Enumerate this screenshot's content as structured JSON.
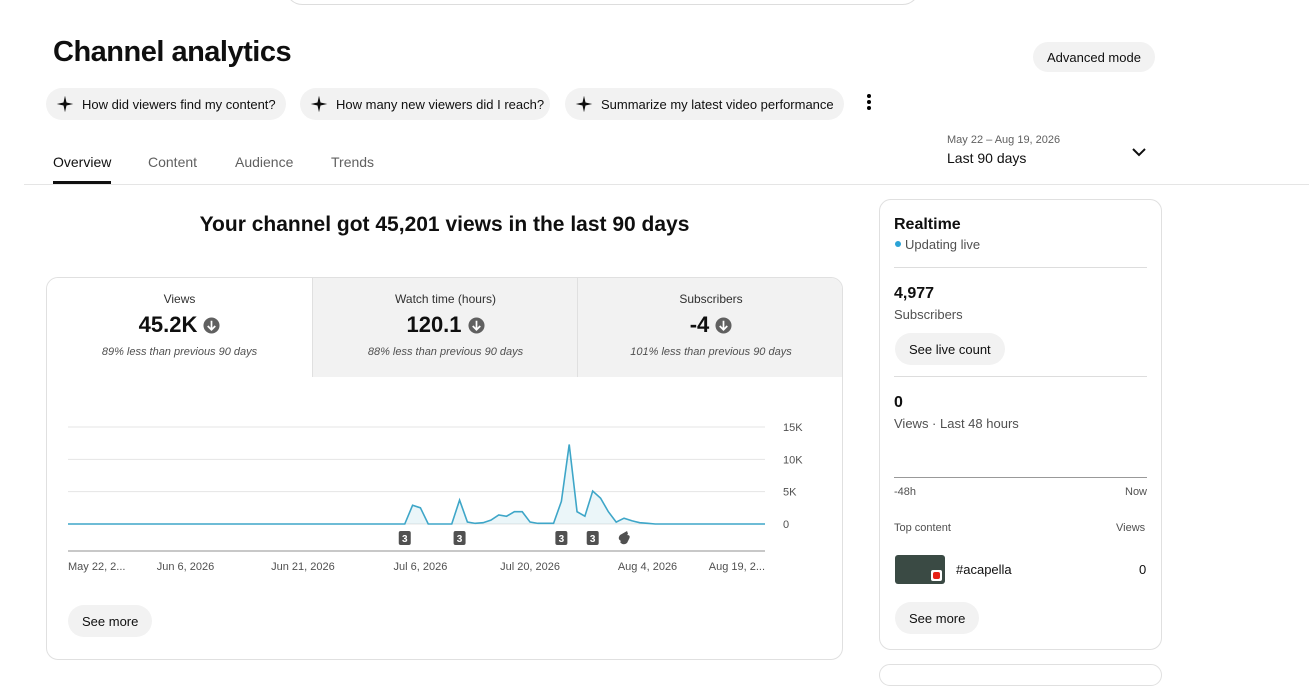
{
  "header": {
    "title": "Channel analytics",
    "advanced_button": "Advanced mode"
  },
  "suggestions": [
    "How did viewers find my content?",
    "How many new viewers did I reach?",
    "Summarize my latest video performance"
  ],
  "tabs": [
    "Overview",
    "Content",
    "Audience",
    "Trends"
  ],
  "date_range": {
    "range": "May 22 – Aug 19, 2026",
    "label": "Last 90 days"
  },
  "headline": "Your channel got 45,201 views in the last 90 days",
  "metrics": [
    {
      "label": "Views",
      "value": "45.2K",
      "change": "89% less than previous 90 days"
    },
    {
      "label": "Watch time (hours)",
      "value": "120.1",
      "change": "88% less than previous 90 days"
    },
    {
      "label": "Subscribers",
      "value": "-4",
      "change": "101% less than previous 90 days"
    }
  ],
  "chart_data": {
    "type": "line",
    "color": "#3ea6c8",
    "grid": true,
    "x": [
      "2026-05-22",
      "2026-07-04",
      "2026-07-05",
      "2026-07-06",
      "2026-07-07",
      "2026-07-10",
      "2026-07-11",
      "2026-07-12",
      "2026-07-13",
      "2026-07-14",
      "2026-07-15",
      "2026-07-16",
      "2026-07-17",
      "2026-07-18",
      "2026-07-19",
      "2026-07-20",
      "2026-07-21",
      "2026-07-22",
      "2026-07-23",
      "2026-07-24",
      "2026-07-25",
      "2026-07-26",
      "2026-07-27",
      "2026-07-28",
      "2026-07-29",
      "2026-07-30",
      "2026-07-31",
      "2026-08-01",
      "2026-08-02",
      "2026-08-03",
      "2026-08-04",
      "2026-08-05",
      "2026-08-19"
    ],
    "values": [
      0,
      0,
      2900,
      2500,
      0,
      0,
      3700,
      300,
      100,
      200,
      600,
      1400,
      1200,
      1900,
      1900,
      300,
      100,
      100,
      100,
      3500,
      12300,
      1900,
      1200,
      5100,
      4000,
      1900,
      300,
      900,
      500,
      200,
      100,
      0,
      0
    ],
    "xlim": [
      "2026-05-22",
      "2026-08-19"
    ],
    "xticks": [
      {
        "value": "2026-05-22",
        "label": "May 22, 2..."
      },
      {
        "value": "2026-06-06",
        "label": "Jun 6, 2026"
      },
      {
        "value": "2026-06-21",
        "label": "Jun 21, 2026"
      },
      {
        "value": "2026-07-06",
        "label": "Jul 6, 2026"
      },
      {
        "value": "2026-07-20",
        "label": "Jul 20, 2026"
      },
      {
        "value": "2026-08-04",
        "label": "Aug 4, 2026"
      },
      {
        "value": "2026-08-19",
        "label": "Aug 19, 2..."
      }
    ],
    "ylim": [
      0,
      15000
    ],
    "yticks": [
      0,
      {
        "value": 5000,
        "label": "5K"
      },
      {
        "value": 10000,
        "label": "10K"
      },
      {
        "value": 15000,
        "label": "15K"
      }
    ],
    "markers": [
      {
        "x": "2026-07-04",
        "label": "3"
      },
      {
        "x": "2026-07-11",
        "label": "3"
      },
      {
        "x": "2026-07-24",
        "label": "3"
      },
      {
        "x": "2026-07-28",
        "label": "3"
      },
      {
        "x": "2026-08-01"
      }
    ]
  },
  "see_more": "See more",
  "realtime": {
    "title": "Realtime",
    "status": "Updating live",
    "subscribers": {
      "value": "4,977",
      "label": "Subscribers"
    },
    "live_button": "See live count",
    "views": {
      "value": "0",
      "label": "Views · Last 48 hours"
    },
    "axis": [
      "-48h",
      "Now"
    ],
    "top_content": {
      "header": "Top content",
      "column": "Views",
      "items": [
        {
          "title": "#acapella",
          "views": "0"
        }
      ]
    },
    "see_more": "See more"
  }
}
